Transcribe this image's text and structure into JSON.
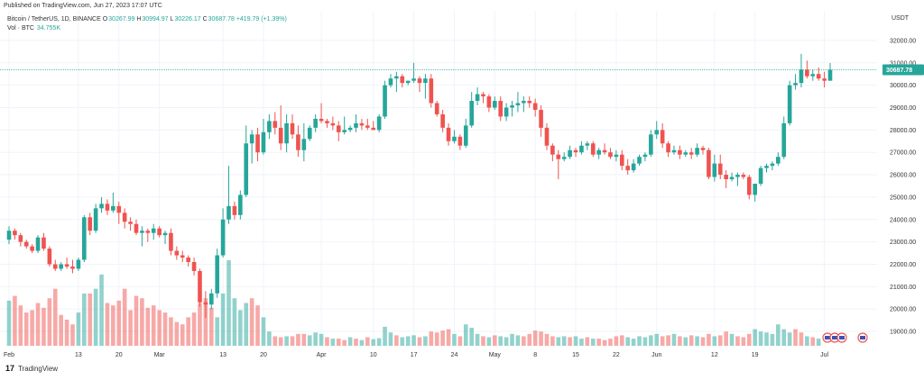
{
  "header": {
    "published": "Published on TradingView.com, Jun 27, 2023 17:07 UTC"
  },
  "legend": {
    "symbol": "Bitcoin / TetherUS, 1D, BINANCE",
    "o_label": "O",
    "o": "30267.99",
    "h_label": "H",
    "h": "30994.97",
    "l_label": "L",
    "l": "30226.17",
    "c_label": "C",
    "c": "30687.78",
    "change": "+419.79 (+1.39%)",
    "vol_label": "Vol · BTC",
    "vol": "34.755K"
  },
  "branding": {
    "logo": "17",
    "name": "TradingView"
  },
  "chart_data": {
    "type": "candlestick",
    "currency_label": "USDT",
    "last_price": 30687.78,
    "last_price_label": "30687.78",
    "ylim": [
      18600,
      32600
    ],
    "y_ticks": [
      19000,
      20000,
      21000,
      22000,
      23000,
      24000,
      25000,
      26000,
      27000,
      28000,
      29000,
      30000,
      31000,
      32000
    ],
    "y_tick_labels": [
      "19000.00",
      "20000.00",
      "21000.00",
      "22000.00",
      "23000.00",
      "24000.00",
      "25000.00",
      "26000.00",
      "27000.00",
      "28000.00",
      "29000.00",
      "30000.00",
      "31000.00",
      "32000.00"
    ],
    "x_tick_labels": [
      "Feb",
      "13",
      "20",
      "Mar",
      "13",
      "20",
      "Apr",
      "10",
      "17",
      "24",
      "May",
      "8",
      "15",
      "22",
      "Jun",
      "12",
      "19",
      "Jul"
    ],
    "x_tick_index": [
      0,
      12,
      19,
      26,
      37,
      44,
      54,
      63,
      70,
      77,
      84,
      91,
      98,
      105,
      112,
      122,
      129,
      141
    ],
    "up_color": "#26a69a",
    "down_color": "#ef5350",
    "candles": [
      [
        23100,
        23700,
        22900,
        23500
      ],
      [
        23500,
        23600,
        23100,
        23300
      ],
      [
        23300,
        23400,
        22800,
        23000
      ],
      [
        23000,
        23100,
        22700,
        22800
      ],
      [
        22800,
        22900,
        22500,
        22600
      ],
      [
        22600,
        23300,
        22500,
        23200
      ],
      [
        23200,
        23400,
        22600,
        22700
      ],
      [
        22700,
        22800,
        21900,
        22000
      ],
      [
        22000,
        22200,
        21700,
        21800
      ],
      [
        21800,
        22100,
        21700,
        22000
      ],
      [
        22000,
        22300,
        21800,
        21900
      ],
      [
        21900,
        22200,
        21600,
        21800
      ],
      [
        21800,
        22300,
        21700,
        22200
      ],
      [
        22200,
        24200,
        22100,
        24100
      ],
      [
        24100,
        24300,
        23300,
        23500
      ],
      [
        23500,
        24700,
        23400,
        24500
      ],
      [
        24500,
        25000,
        24300,
        24700
      ],
      [
        24700,
        24900,
        24200,
        24400
      ],
      [
        24400,
        25200,
        24300,
        24600
      ],
      [
        24600,
        24800,
        23800,
        24300
      ],
      [
        24300,
        24500,
        23600,
        23900
      ],
      [
        23900,
        24100,
        23500,
        23800
      ],
      [
        23800,
        24000,
        23300,
        23400
      ],
      [
        23400,
        23700,
        22800,
        23500
      ],
      [
        23500,
        23600,
        23000,
        23400
      ],
      [
        23400,
        23800,
        23100,
        23600
      ],
      [
        23600,
        23700,
        23200,
        23300
      ],
      [
        23300,
        23500,
        22900,
        23400
      ],
      [
        23400,
        23600,
        22400,
        22600
      ],
      [
        22600,
        22800,
        22200,
        22400
      ],
      [
        22400,
        22600,
        22100,
        22300
      ],
      [
        22300,
        22400,
        21900,
        22100
      ],
      [
        22100,
        22300,
        21500,
        21700
      ],
      [
        21700,
        21800,
        20100,
        20300
      ],
      [
        20300,
        20800,
        19600,
        20200
      ],
      [
        20200,
        20900,
        20000,
        20700
      ],
      [
        20700,
        22700,
        20500,
        22400
      ],
      [
        22400,
        24500,
        22300,
        24000
      ],
      [
        24000,
        26400,
        23800,
        24600
      ],
      [
        24600,
        24800,
        24000,
        24200
      ],
      [
        24200,
        25300,
        24000,
        25100
      ],
      [
        25100,
        28200,
        25000,
        27400
      ],
      [
        27400,
        28000,
        26500,
        27800
      ],
      [
        27800,
        28100,
        26600,
        27000
      ],
      [
        27000,
        28500,
        26900,
        27900
      ],
      [
        27900,
        28700,
        27600,
        28400
      ],
      [
        28400,
        28800,
        27800,
        28100
      ],
      [
        28100,
        29100,
        27100,
        27400
      ],
      [
        27400,
        28700,
        27000,
        28300
      ],
      [
        28300,
        28700,
        27600,
        27800
      ],
      [
        27800,
        28200,
        26800,
        27100
      ],
      [
        27100,
        28300,
        26600,
        27600
      ],
      [
        27600,
        28200,
        27500,
        28100
      ],
      [
        28100,
        28700,
        27900,
        28500
      ],
      [
        28500,
        29200,
        28300,
        28400
      ],
      [
        28400,
        28500,
        28100,
        28300
      ],
      [
        28300,
        28600,
        28000,
        28200
      ],
      [
        28200,
        28400,
        27500,
        27900
      ],
      [
        27900,
        28600,
        27800,
        28000
      ],
      [
        28000,
        28200,
        27900,
        28100
      ],
      [
        28100,
        28700,
        27900,
        28300
      ],
      [
        28300,
        28500,
        28000,
        28200
      ],
      [
        28200,
        28500,
        28000,
        28100
      ],
      [
        28100,
        28400,
        28000,
        28000
      ],
      [
        28000,
        28700,
        27900,
        28600
      ],
      [
        28600,
        30200,
        28500,
        30000
      ],
      [
        30000,
        30500,
        29900,
        30300
      ],
      [
        30300,
        30600,
        29700,
        30400
      ],
      [
        30400,
        30500,
        29900,
        30100
      ],
      [
        30100,
        30200,
        30000,
        30200
      ],
      [
        30200,
        31000,
        30100,
        30300
      ],
      [
        30300,
        30400,
        29700,
        30100
      ],
      [
        30100,
        30500,
        29400,
        30300
      ],
      [
        30300,
        30500,
        29000,
        29200
      ],
      [
        29200,
        29300,
        28600,
        28700
      ],
      [
        28700,
        28900,
        27900,
        28100
      ],
      [
        28100,
        28300,
        27300,
        27500
      ],
      [
        27500,
        28000,
        27400,
        27700
      ],
      [
        27700,
        27800,
        27100,
        27300
      ],
      [
        27300,
        28500,
        27200,
        28200
      ],
      [
        28200,
        29700,
        28100,
        29300
      ],
      [
        29300,
        29900,
        29100,
        29600
      ],
      [
        29600,
        29700,
        29200,
        29500
      ],
      [
        29500,
        29600,
        28800,
        29000
      ],
      [
        29000,
        29500,
        28900,
        29300
      ],
      [
        29300,
        29500,
        28400,
        28600
      ],
      [
        28600,
        29200,
        28400,
        29000
      ],
      [
        29000,
        29300,
        28600,
        29100
      ],
      [
        29100,
        29700,
        28800,
        29200
      ],
      [
        29200,
        29500,
        28800,
        29300
      ],
      [
        29300,
        29500,
        29000,
        29200
      ],
      [
        29200,
        29400,
        28600,
        28900
      ],
      [
        28900,
        29100,
        27700,
        28100
      ],
      [
        28100,
        28300,
        27100,
        27300
      ],
      [
        27300,
        27400,
        26600,
        26900
      ],
      [
        26900,
        27100,
        25800,
        26700
      ],
      [
        26700,
        27000,
        26600,
        26800
      ],
      [
        26800,
        27300,
        26700,
        27100
      ],
      [
        27100,
        27200,
        26800,
        27000
      ],
      [
        27000,
        27500,
        26900,
        27300
      ],
      [
        27300,
        27500,
        27100,
        27400
      ],
      [
        27400,
        27500,
        26800,
        26900
      ],
      [
        26900,
        27200,
        26700,
        27100
      ],
      [
        27100,
        27400,
        26900,
        27000
      ],
      [
        27000,
        27200,
        26700,
        26800
      ],
      [
        26800,
        27100,
        26600,
        26900
      ],
      [
        26900,
        27100,
        26200,
        26400
      ],
      [
        26400,
        26700,
        26000,
        26200
      ],
      [
        26200,
        26700,
        26100,
        26500
      ],
      [
        26500,
        26900,
        26400,
        26800
      ],
      [
        26800,
        27000,
        26600,
        26900
      ],
      [
        26900,
        28000,
        26800,
        27800
      ],
      [
        27800,
        28400,
        27600,
        28000
      ],
      [
        28000,
        28300,
        27200,
        27400
      ],
      [
        27400,
        27500,
        26800,
        27000
      ],
      [
        27000,
        27300,
        26900,
        27100
      ],
      [
        27100,
        27300,
        26700,
        26900
      ],
      [
        26900,
        27100,
        26800,
        27000
      ],
      [
        27000,
        27200,
        26700,
        26900
      ],
      [
        26900,
        27400,
        26800,
        27200
      ],
      [
        27200,
        27300,
        26900,
        27100
      ],
      [
        27100,
        27200,
        25800,
        25900
      ],
      [
        25900,
        26900,
        25700,
        26500
      ],
      [
        26500,
        26900,
        25800,
        26000
      ],
      [
        26000,
        26200,
        25400,
        25800
      ],
      [
        25800,
        26100,
        25700,
        25900
      ],
      [
        25900,
        26100,
        25500,
        26000
      ],
      [
        26000,
        26100,
        25800,
        25900
      ],
      [
        25900,
        26000,
        24900,
        25100
      ],
      [
        25100,
        25500,
        24800,
        25600
      ],
      [
        25600,
        26400,
        25500,
        26300
      ],
      [
        26300,
        26500,
        26100,
        26400
      ],
      [
        26400,
        26600,
        26200,
        26500
      ],
      [
        26500,
        27000,
        26400,
        26800
      ],
      [
        26800,
        28600,
        26700,
        28300
      ],
      [
        28300,
        30200,
        28200,
        30000
      ],
      [
        30000,
        30500,
        29800,
        30100
      ],
      [
        30100,
        31400,
        29900,
        30700
      ],
      [
        30700,
        31100,
        30300,
        30400
      ],
      [
        30400,
        30700,
        30200,
        30500
      ],
      [
        30500,
        30800,
        30200,
        30300
      ],
      [
        30300,
        30600,
        29900,
        30200
      ],
      [
        30200,
        30990,
        30200,
        30690
      ]
    ],
    "volumes": [
      [
        0.95,
        1
      ],
      [
        1.05,
        0
      ],
      [
        0.85,
        0
      ],
      [
        0.7,
        0
      ],
      [
        0.75,
        0
      ],
      [
        0.9,
        0
      ],
      [
        0.8,
        0
      ],
      [
        1.0,
        0
      ],
      [
        1.2,
        0
      ],
      [
        0.65,
        0
      ],
      [
        0.55,
        0
      ],
      [
        0.45,
        0
      ],
      [
        0.7,
        1
      ],
      [
        1.1,
        1
      ],
      [
        1.1,
        0
      ],
      [
        1.2,
        1
      ],
      [
        1.5,
        1
      ],
      [
        0.9,
        0
      ],
      [
        0.85,
        0
      ],
      [
        0.95,
        0
      ],
      [
        1.2,
        0
      ],
      [
        0.75,
        0
      ],
      [
        1.05,
        0
      ],
      [
        1.0,
        0
      ],
      [
        0.8,
        0
      ],
      [
        0.85,
        0
      ],
      [
        0.75,
        0
      ],
      [
        0.7,
        0
      ],
      [
        0.6,
        0
      ],
      [
        0.5,
        0
      ],
      [
        0.45,
        0
      ],
      [
        0.6,
        0
      ],
      [
        0.7,
        0
      ],
      [
        0.9,
        0
      ],
      [
        1.0,
        0
      ],
      [
        0.8,
        0
      ],
      [
        0.6,
        1
      ],
      [
        1.1,
        1
      ],
      [
        1.8,
        1
      ],
      [
        1.0,
        1
      ],
      [
        0.75,
        1
      ],
      [
        0.9,
        1
      ],
      [
        1.0,
        0
      ],
      [
        0.85,
        0
      ],
      [
        0.6,
        1
      ],
      [
        0.3,
        1
      ],
      [
        0.2,
        0
      ],
      [
        0.18,
        0
      ],
      [
        0.2,
        1
      ],
      [
        0.2,
        0
      ],
      [
        0.25,
        0
      ],
      [
        0.25,
        0
      ],
      [
        0.22,
        1
      ],
      [
        0.28,
        1
      ],
      [
        0.25,
        1
      ],
      [
        0.18,
        0
      ],
      [
        0.15,
        1
      ],
      [
        0.15,
        0
      ],
      [
        0.12,
        0
      ],
      [
        0.18,
        1
      ],
      [
        0.15,
        0
      ],
      [
        0.12,
        1
      ],
      [
        0.18,
        0
      ],
      [
        0.14,
        1
      ],
      [
        0.16,
        1
      ],
      [
        0.4,
        1
      ],
      [
        0.28,
        1
      ],
      [
        0.22,
        0
      ],
      [
        0.18,
        1
      ],
      [
        0.2,
        1
      ],
      [
        0.22,
        1
      ],
      [
        0.18,
        0
      ],
      [
        0.2,
        1
      ],
      [
        0.3,
        0
      ],
      [
        0.28,
        0
      ],
      [
        0.32,
        0
      ],
      [
        0.35,
        0
      ],
      [
        0.25,
        1
      ],
      [
        0.2,
        0
      ],
      [
        0.45,
        1
      ],
      [
        0.38,
        1
      ],
      [
        0.25,
        1
      ],
      [
        0.2,
        0
      ],
      [
        0.18,
        1
      ],
      [
        0.22,
        0
      ],
      [
        0.2,
        1
      ],
      [
        0.18,
        1
      ],
      [
        0.25,
        1
      ],
      [
        0.22,
        1
      ],
      [
        0.2,
        0
      ],
      [
        0.25,
        0
      ],
      [
        0.32,
        0
      ],
      [
        0.3,
        0
      ],
      [
        0.25,
        0
      ],
      [
        0.2,
        0
      ],
      [
        0.18,
        1
      ],
      [
        0.2,
        1
      ],
      [
        0.18,
        0
      ],
      [
        0.2,
        1
      ],
      [
        0.15,
        1
      ],
      [
        0.18,
        0
      ],
      [
        0.15,
        1
      ],
      [
        0.15,
        0
      ],
      [
        0.12,
        0
      ],
      [
        0.15,
        0
      ],
      [
        0.2,
        0
      ],
      [
        0.22,
        0
      ],
      [
        0.18,
        1
      ],
      [
        0.15,
        1
      ],
      [
        0.2,
        1
      ],
      [
        0.18,
        1
      ],
      [
        0.22,
        1
      ],
      [
        0.25,
        1
      ],
      [
        0.2,
        0
      ],
      [
        0.22,
        0
      ],
      [
        0.25,
        1
      ],
      [
        0.2,
        0
      ],
      [
        0.18,
        1
      ],
      [
        0.22,
        0
      ],
      [
        0.2,
        1
      ],
      [
        0.18,
        0
      ],
      [
        0.25,
        0
      ],
      [
        0.2,
        1
      ],
      [
        0.22,
        0
      ],
      [
        0.3,
        0
      ],
      [
        0.25,
        1
      ],
      [
        0.2,
        0
      ],
      [
        0.18,
        0
      ],
      [
        0.25,
        0
      ],
      [
        0.35,
        1
      ],
      [
        0.3,
        1
      ],
      [
        0.28,
        1
      ],
      [
        0.25,
        1
      ],
      [
        0.45,
        1
      ],
      [
        0.35,
        1
      ],
      [
        0.28,
        1
      ],
      [
        0.35,
        0
      ],
      [
        0.28,
        0
      ],
      [
        0.2,
        1
      ],
      [
        0.18,
        0
      ],
      [
        0.15,
        1
      ]
    ],
    "event_markers": 4
  }
}
